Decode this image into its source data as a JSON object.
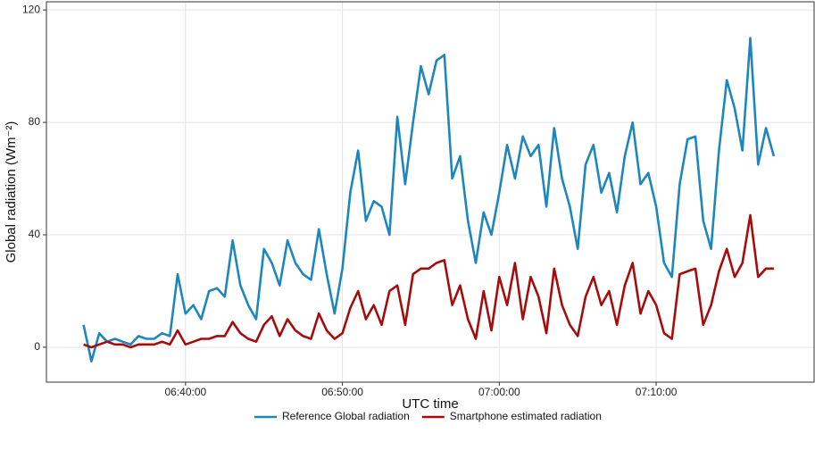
{
  "chart_data": {
    "type": "line",
    "x_label": "UTC time",
    "y_label": "Global radiation (Wm⁻²)",
    "xlim": [
      "06:31:08",
      "07:20:04"
    ],
    "xticks": [
      "06:40:00",
      "06:50:00",
      "07:00:00",
      "07:10:00"
    ],
    "ylim": [
      -12.4,
      122.9
    ],
    "yticks": [
      0,
      40,
      80,
      120
    ],
    "grid": true,
    "legend": "bottom",
    "x": [
      "06:33:30",
      "06:34:00",
      "06:34:30",
      "06:35:00",
      "06:35:30",
      "06:36:00",
      "06:36:30",
      "06:37:00",
      "06:37:30",
      "06:38:00",
      "06:38:30",
      "06:39:00",
      "06:39:30",
      "06:40:00",
      "06:40:30",
      "06:41:00",
      "06:41:30",
      "06:42:00",
      "06:42:30",
      "06:43:00",
      "06:43:30",
      "06:44:00",
      "06:44:30",
      "06:45:00",
      "06:45:30",
      "06:46:00",
      "06:46:30",
      "06:47:00",
      "06:47:30",
      "06:48:00",
      "06:48:30",
      "06:49:00",
      "06:49:30",
      "06:50:00",
      "06:50:30",
      "06:51:00",
      "06:51:30",
      "06:52:00",
      "06:52:30",
      "06:53:00",
      "06:53:30",
      "06:54:00",
      "06:54:30",
      "06:55:00",
      "06:55:30",
      "06:56:00",
      "06:56:30",
      "06:57:00",
      "06:57:30",
      "06:58:00",
      "06:58:30",
      "06:59:00",
      "06:59:30",
      "07:00:00",
      "07:00:30",
      "07:01:00",
      "07:01:30",
      "07:02:00",
      "07:02:30",
      "07:03:00",
      "07:03:30",
      "07:04:00",
      "07:04:30",
      "07:05:00",
      "07:05:30",
      "07:06:00",
      "07:06:30",
      "07:07:00",
      "07:07:30",
      "07:08:00",
      "07:08:30",
      "07:09:00",
      "07:09:30",
      "07:10:00",
      "07:10:30",
      "07:11:00",
      "07:11:30",
      "07:12:00",
      "07:12:30",
      "07:13:00",
      "07:13:30",
      "07:14:00",
      "07:14:30",
      "07:15:00",
      "07:15:30",
      "07:16:00",
      "07:16:30",
      "07:17:00",
      "07:17:30"
    ],
    "series": [
      {
        "name": "Reference Global radiation",
        "color": "#1d87bd",
        "values": [
          8,
          -5,
          5,
          2,
          3,
          2,
          1,
          4,
          3,
          3,
          5,
          4,
          26,
          12,
          15,
          10,
          20,
          21,
          18,
          38,
          22,
          15,
          10,
          35,
          30,
          22,
          38,
          30,
          26,
          24,
          42,
          26,
          12,
          28,
          55,
          70,
          45,
          52,
          50,
          40,
          82,
          58,
          80,
          100,
          90,
          102,
          104,
          60,
          68,
          45,
          30,
          48,
          40,
          55,
          72,
          60,
          75,
          68,
          72,
          50,
          78,
          60,
          50,
          35,
          65,
          72,
          55,
          62,
          48,
          68,
          80,
          58,
          62,
          50,
          30,
          25,
          58,
          74,
          75,
          45,
          35,
          70,
          95,
          85,
          70,
          110,
          65,
          78,
          68
        ]
      },
      {
        "name": "Smartphone estimated radiation",
        "color": "#a50d0d",
        "values": [
          1,
          0,
          1,
          2,
          1,
          1,
          0,
          1,
          1,
          1,
          2,
          1,
          6,
          1,
          2,
          3,
          3,
          4,
          4,
          9,
          5,
          3,
          2,
          8,
          11,
          4,
          10,
          6,
          4,
          3,
          12,
          6,
          3,
          5,
          14,
          20,
          10,
          15,
          8,
          20,
          22,
          8,
          26,
          28,
          28,
          30,
          31,
          15,
          22,
          10,
          3,
          20,
          6,
          25,
          15,
          30,
          10,
          25,
          18,
          5,
          28,
          15,
          8,
          4,
          18,
          25,
          15,
          20,
          8,
          22,
          30,
          12,
          20,
          15,
          5,
          3,
          26,
          27,
          28,
          8,
          15,
          27,
          35,
          25,
          30,
          47,
          25,
          28,
          28
        ]
      }
    ]
  }
}
